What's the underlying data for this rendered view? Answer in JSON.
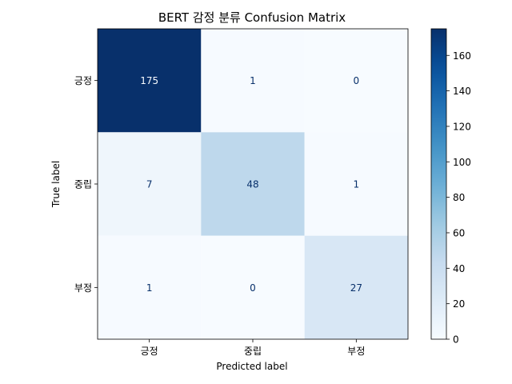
{
  "chart_data": {
    "type": "heatmap",
    "title": "BERT 감정 분류 Confusion Matrix",
    "xlabel": "Predicted label",
    "ylabel": "True label",
    "x_categories": [
      "긍정",
      "중립",
      "부정"
    ],
    "y_categories": [
      "긍정",
      "중립",
      "부정"
    ],
    "values": [
      [
        175,
        1,
        0
      ],
      [
        7,
        48,
        1
      ],
      [
        1,
        0,
        27
      ]
    ],
    "colormap": "Blues",
    "vmin": 0,
    "vmax": 175,
    "colorbar_ticks": [
      0,
      20,
      40,
      60,
      80,
      100,
      120,
      140,
      160
    ],
    "grid": false
  }
}
